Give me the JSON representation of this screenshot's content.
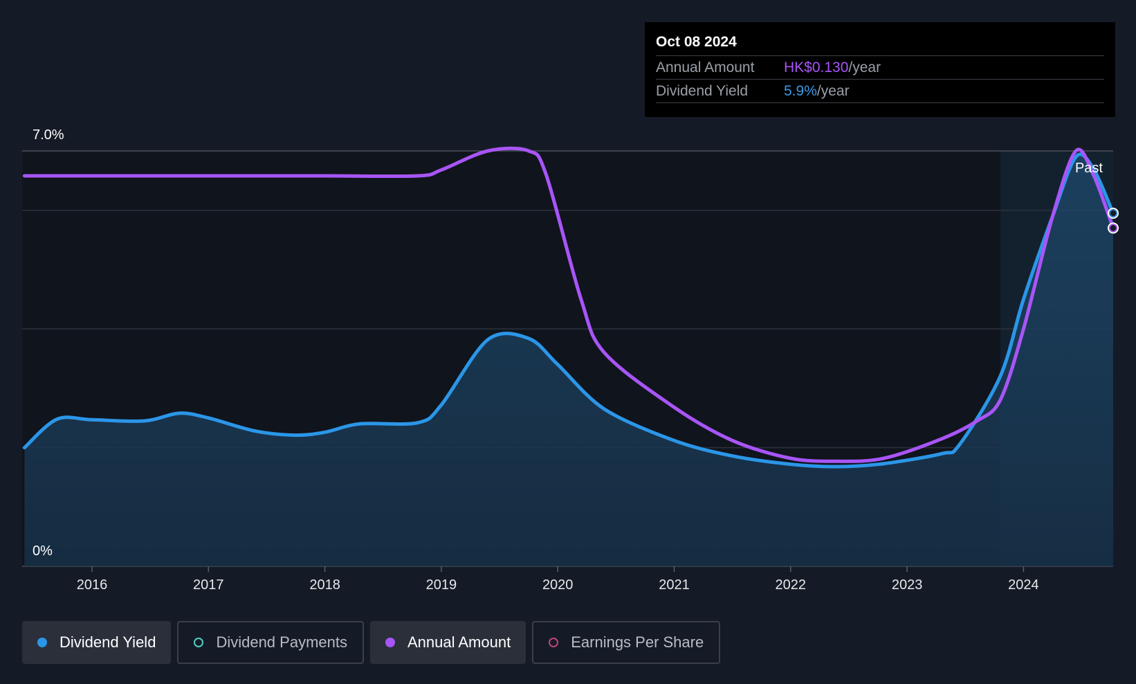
{
  "tooltip": {
    "date": "Oct 08 2024",
    "rows": [
      {
        "label": "Annual Amount",
        "value": "HK$0.130",
        "unit": "/year"
      },
      {
        "label": "Dividend Yield",
        "value": "5.9%",
        "unit": "/year"
      }
    ]
  },
  "legend": [
    {
      "label": "Dividend Yield",
      "color": "#2b96e8",
      "style": "filled",
      "active": true
    },
    {
      "label": "Dividend Payments",
      "color": "#4fd1c5",
      "style": "ring",
      "active": false
    },
    {
      "label": "Annual Amount",
      "color": "#a855f7",
      "style": "filled",
      "active": true
    },
    {
      "label": "Earnings Per Share",
      "color": "#c2447a",
      "style": "ring",
      "active": false
    }
  ],
  "chart_data": {
    "type": "line",
    "x_ticks": [
      "2016",
      "2017",
      "2018",
      "2019",
      "2020",
      "2021",
      "2022",
      "2023",
      "2024"
    ],
    "y_labels": [
      "7.0%",
      "0%"
    ],
    "ylim": [
      0,
      7
    ],
    "xlim": [
      2015.4,
      2024.77
    ],
    "past_label": "Past",
    "past_start": 2023.8,
    "series": [
      {
        "name": "Dividend Yield",
        "color": "#2b96e8",
        "filled": true,
        "points": [
          [
            2015.42,
            2.0
          ],
          [
            2015.7,
            2.48
          ],
          [
            2016.0,
            2.47
          ],
          [
            2016.45,
            2.45
          ],
          [
            2016.75,
            2.58
          ],
          [
            2017.0,
            2.5
          ],
          [
            2017.4,
            2.28
          ],
          [
            2017.75,
            2.21
          ],
          [
            2018.0,
            2.26
          ],
          [
            2018.3,
            2.4
          ],
          [
            2018.8,
            2.42
          ],
          [
            2019.0,
            2.72
          ],
          [
            2019.4,
            3.82
          ],
          [
            2019.75,
            3.84
          ],
          [
            2020.0,
            3.4
          ],
          [
            2020.4,
            2.65
          ],
          [
            2021.0,
            2.12
          ],
          [
            2021.5,
            1.86
          ],
          [
            2022.0,
            1.72
          ],
          [
            2022.4,
            1.68
          ],
          [
            2022.8,
            1.73
          ],
          [
            2023.3,
            1.9
          ],
          [
            2023.45,
            2.05
          ],
          [
            2023.8,
            3.2
          ],
          [
            2024.0,
            4.5
          ],
          [
            2024.25,
            5.9
          ],
          [
            2024.45,
            6.9
          ],
          [
            2024.6,
            6.7
          ],
          [
            2024.77,
            5.95
          ]
        ]
      },
      {
        "name": "Annual Amount",
        "color": "#a855f7",
        "filled": false,
        "points": [
          [
            2015.42,
            6.58
          ],
          [
            2016.0,
            6.58
          ],
          [
            2017.0,
            6.58
          ],
          [
            2018.0,
            6.58
          ],
          [
            2018.8,
            6.58
          ],
          [
            2019.0,
            6.68
          ],
          [
            2019.4,
            7.0
          ],
          [
            2019.75,
            7.0
          ],
          [
            2019.9,
            6.6
          ],
          [
            2020.2,
            4.5
          ],
          [
            2020.4,
            3.6
          ],
          [
            2021.0,
            2.68
          ],
          [
            2021.5,
            2.12
          ],
          [
            2022.0,
            1.82
          ],
          [
            2022.4,
            1.77
          ],
          [
            2022.8,
            1.82
          ],
          [
            2023.3,
            2.15
          ],
          [
            2023.6,
            2.45
          ],
          [
            2023.8,
            2.8
          ],
          [
            2024.0,
            4.0
          ],
          [
            2024.25,
            5.9
          ],
          [
            2024.45,
            7.0
          ],
          [
            2024.6,
            6.6
          ],
          [
            2024.77,
            5.7
          ]
        ]
      }
    ]
  }
}
